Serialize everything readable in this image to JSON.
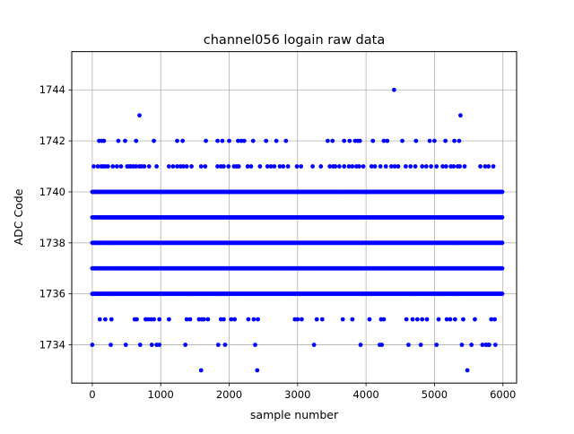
{
  "chart_data": {
    "type": "scatter",
    "title": "channel056 logain raw data",
    "xlabel": "sample number",
    "ylabel": "ADC Code",
    "xlim": [
      -300,
      6200
    ],
    "ylim": [
      1732.5,
      1745.5
    ],
    "xticks": [
      0,
      1000,
      2000,
      3000,
      4000,
      5000,
      6000
    ],
    "yticks": [
      1734,
      1736,
      1738,
      1740,
      1742,
      1744
    ],
    "grid": true,
    "marker_color": "#0000ff",
    "sample_count": 6000,
    "dense_levels": [
      1736,
      1737,
      1738,
      1739,
      1740
    ],
    "sparse_points": {
      "1733": [
        1590,
        2410,
        5480
      ],
      "1734": [
        0,
        270,
        490,
        700,
        870,
        940,
        980,
        1360,
        1840,
        1940,
        2380,
        3240,
        3920,
        4200,
        4230,
        4620,
        4800,
        5030,
        5400,
        5540,
        5700,
        5750,
        5780,
        5800,
        5890
      ],
      "1735": [
        110,
        190,
        280,
        620,
        650,
        780,
        820,
        860,
        900,
        980,
        1120,
        1380,
        1430,
        1560,
        1600,
        1630,
        1690,
        1880,
        1920,
        2030,
        2080,
        2280,
        2360,
        2420,
        2960,
        3000,
        3060,
        3280,
        3360,
        3660,
        3800,
        4050,
        4220,
        4260,
        4590,
        4680,
        4750,
        4820,
        4890,
        5060,
        5180,
        5230,
        5300,
        5420,
        5590,
        5830,
        5880
      ],
      "1741": [
        20,
        80,
        130,
        160,
        190,
        230,
        300,
        360,
        420,
        510,
        540,
        560,
        600,
        640,
        690,
        720,
        760,
        830,
        940,
        1120,
        1180,
        1240,
        1290,
        1330,
        1380,
        1450,
        1590,
        1650,
        1830,
        1880,
        1920,
        1990,
        2070,
        2110,
        2140,
        2270,
        2320,
        2450,
        2560,
        2610,
        2660,
        2740,
        2790,
        2860,
        2990,
        3050,
        3220,
        3340,
        3470,
        3520,
        3550,
        3610,
        3680,
        3750,
        3800,
        3860,
        3900,
        3960,
        4080,
        4130,
        4210,
        4290,
        4370,
        4420,
        4470,
        4580,
        4650,
        4720,
        4820,
        4880,
        4950,
        5030,
        5120,
        5170,
        5240,
        5280,
        5340,
        5370,
        5440,
        5670,
        5740,
        5790,
        5860
      ],
      "1742": [
        100,
        140,
        170,
        380,
        480,
        640,
        900,
        1240,
        1320,
        1660,
        1830,
        1900,
        2000,
        2130,
        2180,
        2220,
        2350,
        2540,
        2690,
        2830,
        3440,
        3510,
        3680,
        3760,
        3840,
        3880,
        3910,
        4100,
        4260,
        4310,
        4530,
        4730,
        4930,
        5000,
        5160,
        5290,
        5360
      ],
      "1743": [
        690,
        5380
      ],
      "1744": [
        4410
      ]
    }
  }
}
